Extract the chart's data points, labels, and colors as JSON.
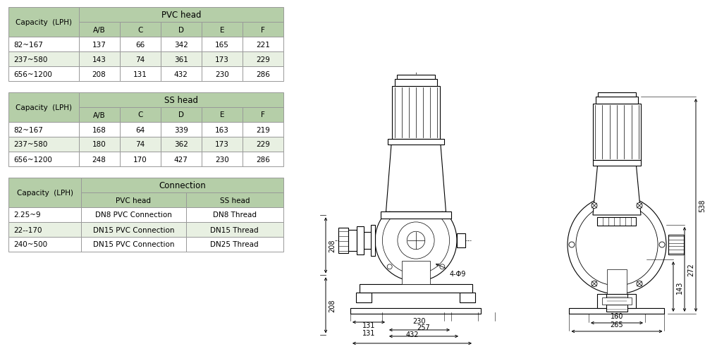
{
  "background_color": "#ffffff",
  "table_header_color": "#b5cea8",
  "table_row_alt_color": "#e8f0e2",
  "table_border_color": "#999999",
  "table1": {
    "title": "PVC head",
    "header": [
      "Capacity  (LPH)",
      "A/B",
      "C",
      "D",
      "E",
      "F"
    ],
    "rows": [
      [
        "82~167",
        "137",
        "66",
        "342",
        "165",
        "221"
      ],
      [
        "237~580",
        "143",
        "74",
        "361",
        "173",
        "229"
      ],
      [
        "656~1200",
        "208",
        "131",
        "432",
        "230",
        "286"
      ]
    ]
  },
  "table2": {
    "title": "SS head",
    "header": [
      "Capacity  (LPH)",
      "A/B",
      "C",
      "D",
      "E",
      "F"
    ],
    "rows": [
      [
        "82~167",
        "168",
        "64",
        "339",
        "163",
        "219"
      ],
      [
        "237~580",
        "180",
        "74",
        "362",
        "173",
        "229"
      ],
      [
        "656~1200",
        "248",
        "170",
        "427",
        "230",
        "286"
      ]
    ]
  },
  "table3": {
    "title": "Connection",
    "header": [
      "Capacity  (LPH)",
      "PVC head",
      "SS head"
    ],
    "rows": [
      [
        "2.25~9",
        "DN8 PVC Connection",
        "DN8 Thread"
      ],
      [
        "22--170",
        "DN15 PVC Connection",
        "DN15 Thread"
      ],
      [
        "240~500",
        "DN15 PVC Connection",
        "DN25 Thread"
      ]
    ]
  },
  "font_size": 7.5,
  "title_font_size": 8.5
}
